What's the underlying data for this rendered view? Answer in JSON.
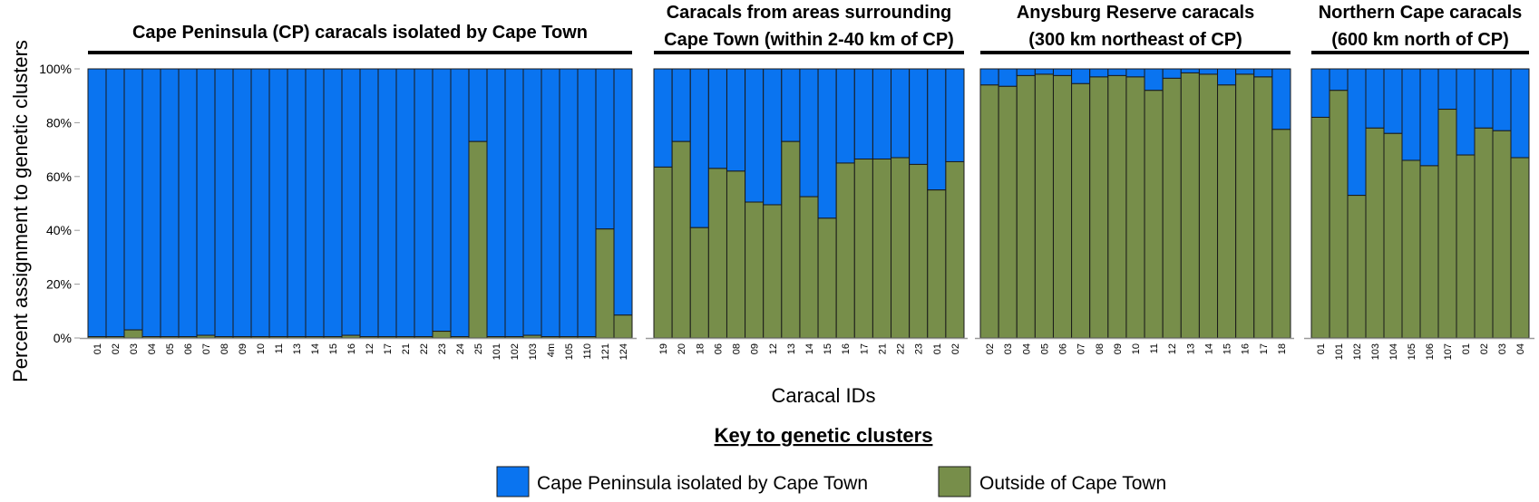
{
  "colors": {
    "cape_peninsula": "#0a74f0",
    "outside": "#778e4a",
    "border": "#1a1a1a"
  },
  "chart_data": {
    "type": "bar",
    "stacked": true,
    "xlabel": "Caracal IDs",
    "ylabel": "Percent assignment to genetic clusters",
    "ylim": [
      0,
      100
    ],
    "yticks": [
      "0%",
      "20%",
      "40%",
      "60%",
      "80%",
      "100%"
    ],
    "grid": false,
    "legend_title": "Key to genetic clusters",
    "legend": [
      "Cape Peninsula isolated by Cape Town",
      "Outside of Cape Town"
    ],
    "series_names": [
      "Outside of Cape Town",
      "Cape Peninsula isolated by Cape Town"
    ],
    "groups": [
      {
        "title": [
          "Cape Peninsula (CP) caracals isolated by Cape Town"
        ],
        "categories": [
          "01",
          "02",
          "03",
          "04",
          "05",
          "06",
          "07",
          "08",
          "09",
          "10",
          "11",
          "13",
          "14",
          "15",
          "16",
          "12",
          "17",
          "21",
          "22",
          "23",
          "24",
          "25",
          "101",
          "102",
          "103",
          "4m",
          "105",
          "110",
          "121",
          "124"
        ],
        "outside": [
          0.5,
          0.5,
          3,
          0.5,
          0.5,
          0.5,
          1,
          0.5,
          0.5,
          0.5,
          0.5,
          0.5,
          0.5,
          0.5,
          1,
          0.5,
          0.5,
          0.5,
          0.5,
          2.5,
          0.5,
          73,
          0.5,
          0.5,
          1,
          0.5,
          0.5,
          0.5,
          40.5,
          8.5
        ]
      },
      {
        "title": [
          "Caracals from areas surrounding",
          "Cape Town (within 2-40 km of CP)"
        ],
        "categories": [
          "19",
          "20",
          "18",
          "06",
          "08",
          "09",
          "12",
          "13",
          "14",
          "15",
          "16",
          "17",
          "21",
          "22",
          "23",
          "01",
          "02"
        ],
        "outside": [
          63.5,
          73,
          41,
          63,
          62,
          50.5,
          49.5,
          73,
          52.5,
          44.5,
          65,
          66.5,
          66.5,
          67,
          64.5,
          55,
          65.5
        ]
      },
      {
        "title": [
          "Anysburg Reserve caracals",
          "(300 km northeast of CP)"
        ],
        "categories": [
          "02",
          "03",
          "04",
          "05",
          "06",
          "07",
          "08",
          "09",
          "10",
          "11",
          "12",
          "13",
          "14",
          "15",
          "16",
          "17",
          "18"
        ],
        "outside": [
          94,
          93.5,
          97.5,
          98,
          97.5,
          94.5,
          97,
          97.5,
          97,
          92,
          96.5,
          98.5,
          98,
          94,
          98,
          97,
          77.5
        ]
      },
      {
        "title": [
          "Northern Cape caracals",
          "(600 km north of CP)"
        ],
        "categories": [
          "01",
          "101",
          "102",
          "103",
          "104",
          "105",
          "106",
          "107",
          "01",
          "02",
          "03",
          "04"
        ],
        "outside": [
          82,
          92,
          53,
          78,
          76,
          66,
          64,
          85,
          68,
          78,
          77,
          67
        ]
      }
    ]
  }
}
